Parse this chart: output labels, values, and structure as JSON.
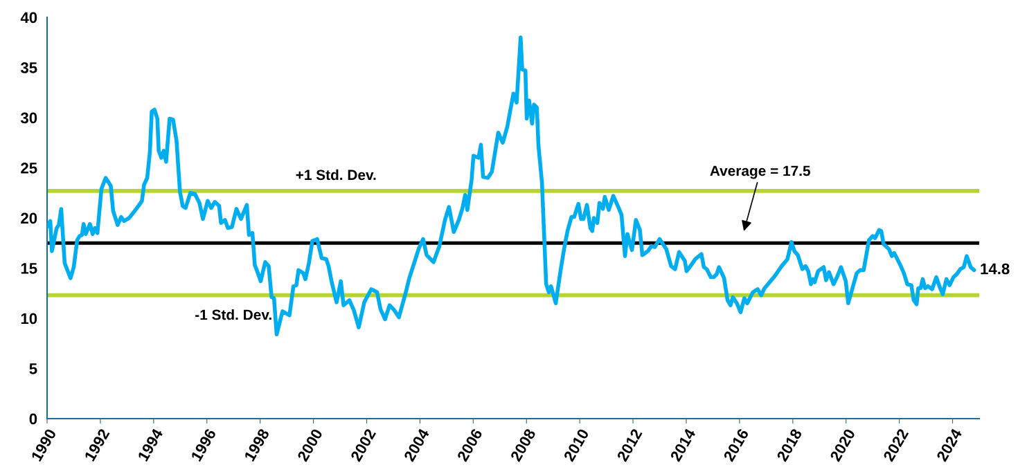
{
  "chart_data": {
    "type": "line",
    "x": [
      1990.0,
      1990.12,
      1990.18,
      1990.36,
      1990.44,
      1990.53,
      1990.66,
      1990.88,
      1991.0,
      1991.13,
      1991.22,
      1991.31,
      1991.37,
      1991.45,
      1991.61,
      1991.71,
      1991.8,
      1991.89,
      1992.04,
      1992.2,
      1992.39,
      1992.48,
      1992.65,
      1992.78,
      1992.89,
      1993.08,
      1993.26,
      1993.43,
      1993.56,
      1993.64,
      1993.76,
      1993.86,
      1993.93,
      1994.03,
      1994.14,
      1994.19,
      1994.29,
      1994.38,
      1994.47,
      1994.6,
      1994.73,
      1994.86,
      1994.99,
      1995.09,
      1995.2,
      1995.38,
      1995.55,
      1995.72,
      1995.85,
      1996.03,
      1996.16,
      1996.3,
      1996.46,
      1996.53,
      1996.68,
      1996.79,
      1996.94,
      1997.11,
      1997.28,
      1997.5,
      1997.58,
      1997.71,
      1997.8,
      1997.89,
      1998.02,
      1998.19,
      1998.32,
      1998.43,
      1998.52,
      1998.62,
      1998.84,
      1999.1,
      1999.25,
      1999.36,
      1999.44,
      1999.62,
      1999.7,
      1999.83,
      1999.96,
      2000.14,
      2000.31,
      2000.48,
      2000.57,
      2000.68,
      2000.87,
      2001.03,
      2001.13,
      2001.35,
      2001.52,
      2001.7,
      2001.91,
      2002.17,
      2002.39,
      2002.52,
      2002.69,
      2002.86,
      2003.04,
      2003.21,
      2003.47,
      2003.6,
      2003.77,
      2003.95,
      2004.12,
      2004.25,
      2004.51,
      2004.73,
      2004.94,
      2005.09,
      2005.27,
      2005.46,
      2005.59,
      2005.7,
      2005.78,
      2005.94,
      2006.01,
      2006.2,
      2006.29,
      2006.37,
      2006.55,
      2006.7,
      2006.94,
      2007.11,
      2007.28,
      2007.51,
      2007.63,
      2007.78,
      2007.84,
      2007.96,
      2008.01,
      2008.1,
      2008.21,
      2008.28,
      2008.39,
      2008.45,
      2008.58,
      2008.74,
      2008.84,
      2008.92,
      2009.1,
      2009.27,
      2009.43,
      2009.55,
      2009.69,
      2009.79,
      2009.95,
      2010.05,
      2010.14,
      2010.27,
      2010.4,
      2010.47,
      2010.53,
      2010.66,
      2010.74,
      2010.87,
      2010.94,
      2011.09,
      2011.26,
      2011.48,
      2011.57,
      2011.7,
      2011.79,
      2011.96,
      2012.11,
      2012.26,
      2012.35,
      2012.56,
      2012.69,
      2012.82,
      2013.0,
      2013.25,
      2013.43,
      2013.58,
      2013.73,
      2013.95,
      2014.01,
      2014.21,
      2014.34,
      2014.57,
      2014.66,
      2014.77,
      2014.92,
      2015.03,
      2015.14,
      2015.23,
      2015.42,
      2015.55,
      2015.66,
      2015.75,
      2015.9,
      2016.04,
      2016.18,
      2016.29,
      2016.5,
      2016.68,
      2016.81,
      2016.94,
      2017.32,
      2017.58,
      2017.8,
      2017.95,
      2018.06,
      2018.19,
      2018.36,
      2018.48,
      2018.58,
      2018.68,
      2018.75,
      2018.82,
      2018.95,
      2019.16,
      2019.25,
      2019.36,
      2019.53,
      2019.66,
      2019.81,
      2019.99,
      2020.08,
      2020.4,
      2020.53,
      2020.66,
      2020.86,
      2021.0,
      2021.09,
      2021.24,
      2021.32,
      2021.41,
      2021.61,
      2021.72,
      2021.81,
      2022.04,
      2022.17,
      2022.3,
      2022.45,
      2022.54,
      2022.65,
      2022.71,
      2022.8,
      2022.88,
      2022.97,
      2023.08,
      2023.23,
      2023.39,
      2023.52,
      2023.63,
      2023.77,
      2023.89,
      2024.03,
      2024.16,
      2024.29,
      2024.42,
      2024.53,
      2024.68,
      2024.81
    ],
    "series": [
      {
        "color": "#00aeef",
        "values": [
          19.1,
          19.7,
          16.7,
          19.0,
          19.3,
          20.9,
          15.5,
          14.0,
          15.1,
          17.8,
          18.2,
          18.3,
          19.4,
          18.4,
          19.4,
          18.4,
          19.0,
          18.5,
          22.9,
          24.0,
          23.2,
          20.7,
          19.3,
          20.1,
          19.7,
          20.0,
          20.6,
          21.2,
          21.7,
          23.3,
          24.0,
          26.6,
          30.6,
          30.8,
          29.9,
          26.7,
          26.0,
          26.7,
          25.6,
          29.9,
          29.8,
          27.7,
          22.6,
          21.2,
          21.0,
          22.5,
          22.4,
          21.5,
          19.9,
          21.7,
          21.0,
          21.6,
          21.2,
          19.5,
          19.8,
          19.0,
          19.1,
          20.9,
          19.9,
          21.3,
          18.3,
          18.5,
          15.3,
          14.7,
          13.7,
          15.6,
          15.2,
          12.1,
          12.0,
          8.4,
          10.7,
          10.3,
          13.2,
          13.3,
          14.8,
          14.5,
          13.9,
          15.5,
          17.7,
          17.9,
          16.0,
          15.9,
          15.2,
          13.7,
          11.6,
          13.7,
          11.3,
          11.8,
          10.8,
          9.1,
          11.6,
          12.9,
          12.6,
          10.9,
          9.9,
          11.3,
          10.8,
          10.1,
          12.6,
          14.0,
          15.4,
          16.9,
          17.9,
          16.3,
          15.6,
          17.2,
          19.8,
          21.1,
          18.6,
          19.8,
          20.9,
          22.3,
          20.8,
          23.8,
          26.2,
          26.0,
          27.3,
          24.1,
          24.0,
          24.6,
          28.5,
          27.5,
          29.1,
          32.4,
          31.5,
          38.0,
          34.8,
          34.7,
          29.9,
          31.7,
          29.4,
          31.3,
          31.0,
          27.2,
          23.6,
          13.4,
          12.6,
          13.2,
          11.5,
          14.6,
          17.2,
          18.8,
          20.1,
          20.1,
          21.4,
          19.9,
          19.9,
          21.3,
          19.0,
          18.7,
          20.0,
          19.5,
          21.5,
          20.9,
          22.1,
          20.8,
          22.2,
          20.9,
          20.3,
          16.2,
          18.4,
          16.8,
          19.8,
          18.8,
          16.3,
          16.7,
          17.2,
          17.1,
          17.9,
          16.9,
          15.2,
          14.9,
          16.6,
          15.7,
          14.7,
          15.4,
          15.9,
          16.4,
          15.1,
          14.9,
          14.1,
          14.1,
          14.4,
          15.1,
          14.0,
          11.8,
          11.3,
          12.1,
          11.5,
          10.6,
          12.0,
          11.5,
          12.6,
          12.9,
          12.3,
          13.0,
          14.2,
          15.2,
          15.9,
          17.6,
          16.7,
          16.3,
          14.9,
          15.2,
          14.7,
          13.4,
          13.9,
          13.6,
          14.7,
          15.1,
          13.8,
          14.6,
          13.4,
          14.1,
          15.1,
          13.7,
          11.5,
          14.5,
          14.8,
          14.8,
          17.8,
          18.2,
          18.0,
          18.8,
          18.7,
          17.4,
          16.9,
          16.2,
          16.5,
          15.3,
          14.5,
          13.4,
          13.3,
          11.8,
          11.4,
          13.0,
          13.0,
          13.9,
          13.0,
          13.2,
          12.9,
          14.1,
          13.1,
          12.4,
          13.9,
          13.3,
          14.1,
          14.4,
          14.9,
          15.1,
          16.2,
          15.1,
          14.8
        ]
      }
    ],
    "xlim": [
      1990,
      2025
    ],
    "xticks": [
      1990,
      1992,
      1994,
      1996,
      1998,
      2000,
      2002,
      2004,
      2006,
      2008,
      2010,
      2012,
      2014,
      2016,
      2018,
      2020,
      2022,
      2024
    ],
    "ylim": [
      0,
      40
    ],
    "yticks": [
      0,
      5,
      10,
      15,
      20,
      25,
      30,
      35,
      40
    ],
    "grid": false,
    "ref_lines": [
      {
        "axis": "y",
        "value": 22.7,
        "label": "+1 Std. Dev.",
        "color": "#b5d334"
      },
      {
        "axis": "y",
        "value": 17.5,
        "label": "Average = 17.5",
        "color": "#000000"
      },
      {
        "axis": "y",
        "value": 12.3,
        "label": "-1 Std. Dev.",
        "color": "#b5d334"
      }
    ],
    "annotations": [
      {
        "text": "14.8",
        "x": 2024.81,
        "y": 14.8
      }
    ]
  }
}
